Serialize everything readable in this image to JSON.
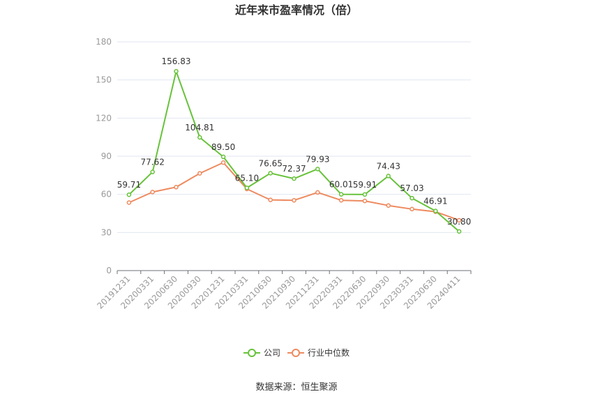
{
  "chart_data": {
    "type": "line",
    "title": "近年来市盈率情况（倍）",
    "categories": [
      "20191231",
      "20200331",
      "20200630",
      "20200930",
      "20201231",
      "20210331",
      "20210630",
      "20210930",
      "20211231",
      "20220331",
      "20220630",
      "20220930",
      "20230331",
      "20230630",
      "20240411"
    ],
    "series": [
      {
        "name": "公司",
        "color": "#67c23a",
        "values": [
          59.71,
          77.62,
          156.83,
          104.81,
          89.5,
          65.1,
          76.65,
          72.37,
          79.93,
          60.01,
          59.91,
          74.43,
          57.03,
          46.91,
          30.8
        ],
        "labels": [
          "59.71",
          "77.62",
          "156.83",
          "104.81",
          "89.50",
          "65.10",
          "76.65",
          "72.37",
          "79.93",
          "60.01",
          "59.91",
          "74.43",
          "57.03",
          "46.91",
          "30.80"
        ]
      },
      {
        "name": "行业中位数",
        "color": "#ee8a5f",
        "values": [
          53.5,
          61.8,
          65.7,
          76.5,
          85.0,
          64.2,
          55.6,
          55.3,
          61.5,
          55.3,
          54.8,
          51.2,
          48.4,
          46.3,
          39.6
        ]
      }
    ],
    "ylim": [
      0,
      180
    ],
    "yticks": [
      0,
      30,
      60,
      90,
      120,
      150,
      180
    ],
    "grid": true,
    "legend_position": "bottom"
  },
  "source": "数据来源：恒生聚源"
}
